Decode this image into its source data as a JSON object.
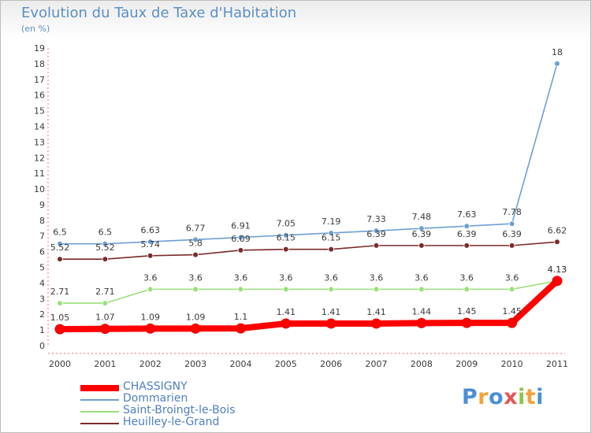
{
  "header": {
    "title": "Evolution du Taux de Taxe d'Habitation",
    "subtitle": "(en %)"
  },
  "chart_data": {
    "type": "line",
    "title": "Evolution du Taux de Taxe d'Habitation",
    "subtitle": "(en %)",
    "xlabel": "",
    "ylabel": "(en %)",
    "categories": [
      "2000",
      "2001",
      "2002",
      "2003",
      "2004",
      "2005",
      "2006",
      "2007",
      "2008",
      "2009",
      "2010",
      "2011"
    ],
    "ylim": [
      0,
      19
    ],
    "yticks": [
      0,
      1,
      2,
      3,
      4,
      5,
      6,
      7,
      8,
      9,
      10,
      11,
      12,
      13,
      14,
      15,
      16,
      17,
      18,
      19
    ],
    "grid": false,
    "legend_position": "bottom-left",
    "series": [
      {
        "name": "CHASSIGNY",
        "color": "#ff0000",
        "values": [
          1.05,
          1.07,
          1.09,
          1.09,
          1.1,
          1.41,
          1.41,
          1.41,
          1.44,
          1.45,
          1.45,
          4.13
        ],
        "labels": [
          "1.05",
          "1.07",
          "1.09",
          "1.09",
          "1.1",
          "1.41",
          "1.41",
          "1.41",
          "1.44",
          "1.45",
          "1.45",
          "4.13"
        ]
      },
      {
        "name": "Dommarien",
        "color": "#6d9fd1",
        "values": [
          6.5,
          6.5,
          6.63,
          6.77,
          6.91,
          7.05,
          7.19,
          7.33,
          7.48,
          7.63,
          7.78,
          18
        ],
        "labels": [
          "6.5",
          "6.5",
          "6.63",
          "6.77",
          "6.91",
          "7.05",
          "7.19",
          "7.33",
          "7.48",
          "7.63",
          "7.78",
          "18"
        ]
      },
      {
        "name": "Saint-Broingt-le-Bois",
        "color": "#99e07a",
        "values": [
          2.71,
          2.71,
          3.6,
          3.6,
          3.6,
          3.6,
          3.6,
          3.6,
          3.6,
          3.6,
          3.6,
          4.13
        ],
        "labels": [
          "2.71",
          "2.71",
          "3.6",
          "3.6",
          "3.6",
          "3.6",
          "3.6",
          "3.6",
          "3.6",
          "3.6",
          "3.6",
          "4.13"
        ]
      },
      {
        "name": "Heuilley-le-Grand",
        "color": "#7a2a2a",
        "values": [
          5.52,
          5.52,
          5.74,
          5.8,
          6.09,
          6.15,
          6.15,
          6.39,
          6.39,
          6.39,
          6.39,
          6.62
        ],
        "labels": [
          "5.52",
          "5.52",
          "5.74",
          "5.8",
          "6.09",
          "6.15",
          "6.15",
          "6.39",
          "6.39",
          "6.39",
          "6.39",
          "6.62"
        ]
      }
    ]
  },
  "logo": {
    "text": "Proxiti",
    "colors": [
      "#4a8fd6",
      "#f2a23a",
      "#4a8fd6",
      "#e85454",
      "#8bc34a",
      "#f2a23a",
      "#4a8fd6"
    ]
  }
}
